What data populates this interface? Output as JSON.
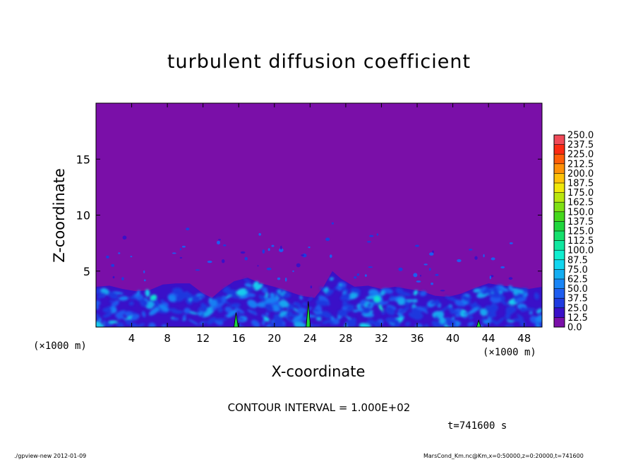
{
  "chart_data": {
    "type": "heatmap",
    "title": "turbulent diffusion coefficient",
    "xlabel": "X-coordinate",
    "ylabel": "Z-coordinate",
    "x_unit_label": "(×1000 m)",
    "xlim": [
      0,
      50
    ],
    "ylim": [
      0,
      20
    ],
    "x_ticks": [
      4,
      8,
      12,
      16,
      20,
      24,
      28,
      32,
      36,
      40,
      44,
      48
    ],
    "y_ticks": [
      5,
      10,
      15
    ],
    "colorbar": {
      "levels": [
        "0.0",
        "12.5",
        "25.0",
        "37.5",
        "50.0",
        "62.5",
        "75.0",
        "87.5",
        "100.0",
        "112.5",
        "125.0",
        "137.5",
        "150.0",
        "162.5",
        "175.0",
        "187.5",
        "200.0",
        "212.5",
        "225.0",
        "237.5",
        "250.0"
      ],
      "colors": [
        "#7a0fa8",
        "#3a10c8",
        "#1f3be0",
        "#1e5df0",
        "#1985f6",
        "#14aef2",
        "#12d6f0",
        "#10eed0",
        "#10e7a0",
        "#14e06c",
        "#1fd63d",
        "#45d81c",
        "#7ee014",
        "#b9e60e",
        "#f0e80a",
        "#ffc20a",
        "#ff9108",
        "#ff5d08",
        "#fb2a12",
        "#f04a58"
      ]
    },
    "contour_interval": "CONTOUR INTERVAL = 1.000E+02",
    "time": "t=741600 s",
    "boundary_layer_top": [
      [
        0,
        3.6
      ],
      [
        1.5,
        3.7
      ],
      [
        3,
        3.4
      ],
      [
        4.5,
        3.2
      ],
      [
        6,
        3.3
      ],
      [
        7.5,
        3.8
      ],
      [
        9,
        3.9
      ],
      [
        10.5,
        3.9
      ],
      [
        12,
        3.0
      ],
      [
        13,
        2.6
      ],
      [
        14,
        3.3
      ],
      [
        15.5,
        4.1
      ],
      [
        17,
        4.4
      ],
      [
        18.5,
        3.9
      ],
      [
        20,
        3.6
      ],
      [
        21.5,
        3.2
      ],
      [
        23,
        2.8
      ],
      [
        24.5,
        2.6
      ],
      [
        25.5,
        3.6
      ],
      [
        26.5,
        5.0
      ],
      [
        27.5,
        4.3
      ],
      [
        29,
        3.6
      ],
      [
        30.5,
        3.7
      ],
      [
        32,
        3.4
      ],
      [
        33.5,
        3.6
      ],
      [
        35,
        3.4
      ],
      [
        36.5,
        3.2
      ],
      [
        38,
        2.8
      ],
      [
        39.5,
        2.7
      ],
      [
        41,
        3.0
      ],
      [
        42.5,
        3.5
      ],
      [
        44,
        3.9
      ],
      [
        45.5,
        3.7
      ],
      [
        47,
        3.6
      ],
      [
        48.5,
        3.4
      ],
      [
        50,
        3.6
      ]
    ],
    "contour_100_regions": [
      {
        "x": 15.7,
        "z_top": 1.3
      },
      {
        "x": 23.8,
        "z_top": 2.3
      },
      {
        "x": 42.9,
        "z_top": 0.6
      }
    ]
  },
  "footer": {
    "left": "./gpview-new  2012-01-09",
    "right": "MarsCond_Km.nc@Km,x=0:50000,z=0:20000,t=741600"
  }
}
